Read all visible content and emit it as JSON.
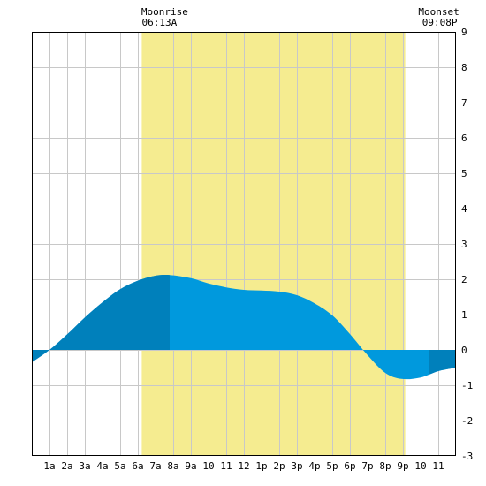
{
  "chart_data": {
    "type": "area",
    "title": "",
    "xlabel": "",
    "ylabel": "",
    "x_unit": "hour of day",
    "xlim": [
      0,
      24
    ],
    "ylim": [
      -3,
      9
    ],
    "y_ticks": [
      9,
      8,
      7,
      6,
      5,
      4,
      3,
      2,
      1,
      0,
      -1,
      -2,
      -3
    ],
    "x_ticks": [
      {
        "x": 1,
        "label": "1a"
      },
      {
        "x": 2,
        "label": "2a"
      },
      {
        "x": 3,
        "label": "3a"
      },
      {
        "x": 4,
        "label": "4a"
      },
      {
        "x": 5,
        "label": "5a"
      },
      {
        "x": 6,
        "label": "6a"
      },
      {
        "x": 7,
        "label": "7a"
      },
      {
        "x": 8,
        "label": "8a"
      },
      {
        "x": 9,
        "label": "9a"
      },
      {
        "x": 10,
        "label": "10"
      },
      {
        "x": 11,
        "label": "11"
      },
      {
        "x": 12,
        "label": "12"
      },
      {
        "x": 13,
        "label": "1p"
      },
      {
        "x": 14,
        "label": "2p"
      },
      {
        "x": 15,
        "label": "3p"
      },
      {
        "x": 16,
        "label": "4p"
      },
      {
        "x": 17,
        "label": "5p"
      },
      {
        "x": 18,
        "label": "6p"
      },
      {
        "x": 19,
        "label": "7p"
      },
      {
        "x": 20,
        "label": "8p"
      },
      {
        "x": 21,
        "label": "9p"
      },
      {
        "x": 22,
        "label": "10"
      },
      {
        "x": 23,
        "label": "11"
      }
    ],
    "grid": true,
    "moon": {
      "rise": {
        "title": "Moonrise",
        "time": "06:13A",
        "x": 6.22
      },
      "set": {
        "title": "Moonset",
        "time": "09:08P",
        "x": 21.13
      }
    },
    "series": [
      {
        "x": [
          0,
          1,
          2,
          3,
          4,
          5,
          6,
          7,
          7.8,
          9,
          10,
          11,
          12,
          13,
          14,
          15,
          16,
          17,
          18,
          19,
          20,
          20.9,
          22,
          23,
          24
        ],
        "values": [
          -0.35,
          0.0,
          0.44,
          0.92,
          1.35,
          1.72,
          1.96,
          2.1,
          2.12,
          2.03,
          1.88,
          1.77,
          1.7,
          1.68,
          1.65,
          1.55,
          1.32,
          0.98,
          0.45,
          -0.15,
          -0.65,
          -0.82,
          -0.78,
          -0.6,
          -0.5
        ]
      }
    ],
    "highlight_ranges": [
      {
        "x0": 0,
        "x1": 7.8,
        "color": "#0080bb"
      },
      {
        "x0": 22.5,
        "x1": 24,
        "color": "#0080bb"
      }
    ],
    "colors": {
      "tide_fill": "#0099dd",
      "tide_highlight": "#0080bb",
      "moon_band": "#f5ec90",
      "grid": "#c8c8c8",
      "frame": "#000000"
    }
  }
}
